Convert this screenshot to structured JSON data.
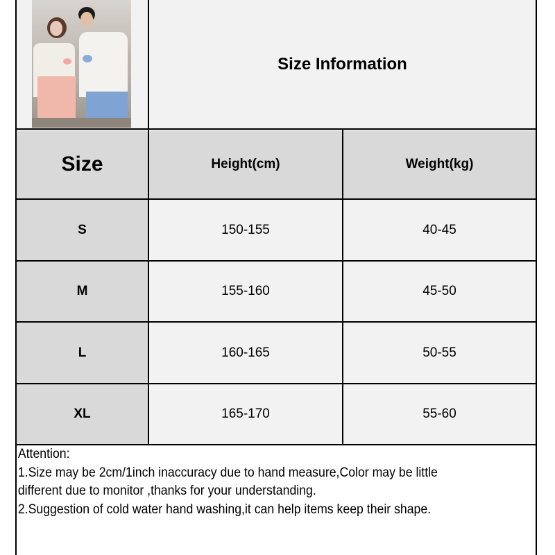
{
  "header": {
    "title": "Size Information"
  },
  "table": {
    "columns": [
      "Size",
      "Height(cm)",
      "Weight(kg)"
    ],
    "rows": [
      {
        "size": "S",
        "height": "150-155",
        "weight": "40-45"
      },
      {
        "size": "M",
        "height": "155-160",
        "weight": "45-50"
      },
      {
        "size": "L",
        "height": "160-165",
        "weight": "50-55"
      },
      {
        "size": "XL",
        "height": "165-170",
        "weight": "55-60"
      }
    ]
  },
  "notes": {
    "heading": "Attention:",
    "lines": [
      "1.Size may be 2cm/1inch inaccuracy due to hand measure,Color may be little",
      "different due to monitor ,thanks for your understanding.",
      "2.Suggestion of cold water hand washing,it can help items keep their shape."
    ]
  },
  "colors": {
    "header_gray": "#d9d9d9",
    "cell_light": "#f2f2f2",
    "accent_green": "#1a9a2a"
  }
}
